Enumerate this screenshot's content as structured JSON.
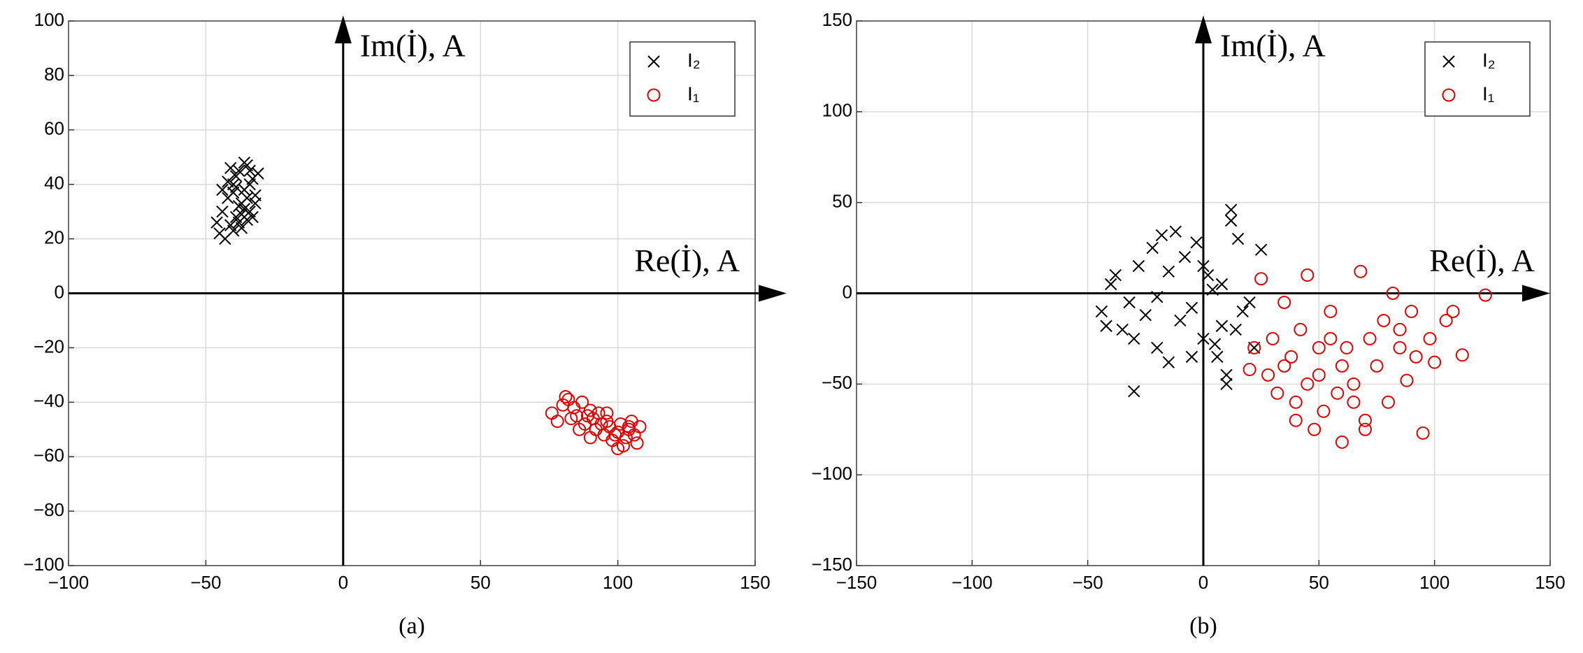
{
  "chart_data": [
    {
      "type": "scatter",
      "panel_label": "(a)",
      "x_annotation": "Re(İ), A",
      "y_annotation": "Im(İ), A",
      "xlim": [
        -100,
        150
      ],
      "ylim": [
        -100,
        100
      ],
      "xticks": [
        {
          "value": -100,
          "label": "−100"
        },
        {
          "value": -50,
          "label": "−50"
        },
        0,
        50,
        100,
        150
      ],
      "yticks": [
        {
          "value": -100,
          "label": "−100"
        },
        {
          "value": -80,
          "label": "−80"
        },
        {
          "value": -60,
          "label": "−60"
        },
        {
          "value": -40,
          "label": "−40"
        },
        {
          "value": -20,
          "label": "−20"
        },
        0,
        20,
        40,
        60,
        80,
        100
      ],
      "grid": true,
      "legend": "upper right",
      "series": [
        {
          "name": "I₂",
          "color": "#000000",
          "marker": "x",
          "x": [
            -45,
            -44,
            -42,
            -41,
            -40,
            -39,
            -38,
            -37,
            -36,
            -35,
            -34,
            -33,
            -32,
            -31,
            -43,
            -40,
            -38,
            -36,
            -34,
            -39,
            -37,
            -35,
            -42,
            -33,
            -41,
            -38,
            -36,
            -44,
            -32,
            -37,
            -40,
            -35,
            -39,
            -34,
            -46
          ],
          "y": [
            22,
            30,
            35,
            25,
            40,
            28,
            45,
            33,
            38,
            47,
            30,
            42,
            36,
            44,
            20,
            37,
            26,
            31,
            40,
            43,
            24,
            35,
            41,
            28,
            46,
            32,
            48,
            38,
            33,
            29,
            23,
            27,
            39,
            45,
            26
          ]
        },
        {
          "name": "I₁",
          "color": "#e00000",
          "marker": "o",
          "x": [
            76,
            78,
            80,
            82,
            84,
            85,
            87,
            88,
            90,
            91,
            92,
            93,
            95,
            96,
            97,
            98,
            100,
            101,
            102,
            103,
            104,
            105,
            106,
            107,
            108,
            83,
            86,
            89,
            94,
            99,
            81,
            90,
            96,
            100,
            104
          ],
          "y": [
            -44,
            -47,
            -41,
            -39,
            -42,
            -45,
            -40,
            -48,
            -43,
            -46,
            -50,
            -44,
            -52,
            -47,
            -49,
            -54,
            -51,
            -48,
            -56,
            -53,
            -50,
            -47,
            -52,
            -55,
            -49,
            -46,
            -50,
            -45,
            -48,
            -52,
            -38,
            -53,
            -44,
            -57,
            -49
          ]
        }
      ]
    },
    {
      "type": "scatter",
      "panel_label": "(b)",
      "x_annotation": "Re(İ), A",
      "y_annotation": "Im(İ), A",
      "xlim": [
        -150,
        150
      ],
      "ylim": [
        -150,
        150
      ],
      "xticks": [
        {
          "value": -150,
          "label": "−150"
        },
        {
          "value": -100,
          "label": "−100"
        },
        {
          "value": -50,
          "label": "−50"
        },
        0,
        50,
        100,
        150
      ],
      "yticks": [
        {
          "value": -150,
          "label": "−150"
        },
        {
          "value": -100,
          "label": "−100"
        },
        {
          "value": -50,
          "label": "−50"
        },
        0,
        50,
        100,
        150
      ],
      "grid": true,
      "legend": "upper right",
      "series": [
        {
          "name": "I₂",
          "color": "#000000",
          "marker": "x",
          "x": [
            -44,
            -42,
            -40,
            -38,
            -35,
            -32,
            -30,
            -28,
            -25,
            -22,
            -20,
            -18,
            -15,
            -12,
            -10,
            -8,
            -5,
            -3,
            0,
            2,
            4,
            6,
            8,
            10,
            12,
            14,
            15,
            17,
            20,
            22,
            25,
            -30,
            -15,
            5,
            10,
            -20,
            0,
            8,
            12,
            -5
          ],
          "y": [
            -10,
            -18,
            5,
            10,
            -20,
            -5,
            -54,
            15,
            -12,
            25,
            -30,
            32,
            -38,
            34,
            -15,
            20,
            -8,
            28,
            -25,
            10,
            2,
            -35,
            5,
            -45,
            46,
            -20,
            30,
            -10,
            -5,
            -30,
            24,
            -25,
            12,
            -28,
            -50,
            -2,
            15,
            -18,
            40,
            -35
          ]
        },
        {
          "name": "I₁",
          "color": "#e00000",
          "marker": "o",
          "x": [
            20,
            22,
            25,
            28,
            30,
            32,
            35,
            38,
            40,
            42,
            45,
            48,
            50,
            52,
            55,
            58,
            60,
            62,
            65,
            68,
            70,
            72,
            75,
            78,
            80,
            82,
            85,
            88,
            90,
            92,
            95,
            98,
            100,
            105,
            108,
            112,
            122,
            45,
            60,
            55,
            70,
            35,
            85,
            65,
            50,
            40
          ],
          "y": [
            -42,
            -30,
            8,
            -45,
            -25,
            -55,
            -5,
            -35,
            -60,
            -20,
            10,
            -75,
            -45,
            -65,
            -10,
            -55,
            -82,
            -30,
            -50,
            12,
            -70,
            -25,
            -40,
            -15,
            -60,
            0,
            -30,
            -48,
            -10,
            -35,
            -77,
            -25,
            -38,
            -15,
            -10,
            -34,
            -1,
            -50,
            -40,
            -25,
            -75,
            -40,
            -20,
            -60,
            -30,
            -70
          ]
        }
      ]
    }
  ]
}
